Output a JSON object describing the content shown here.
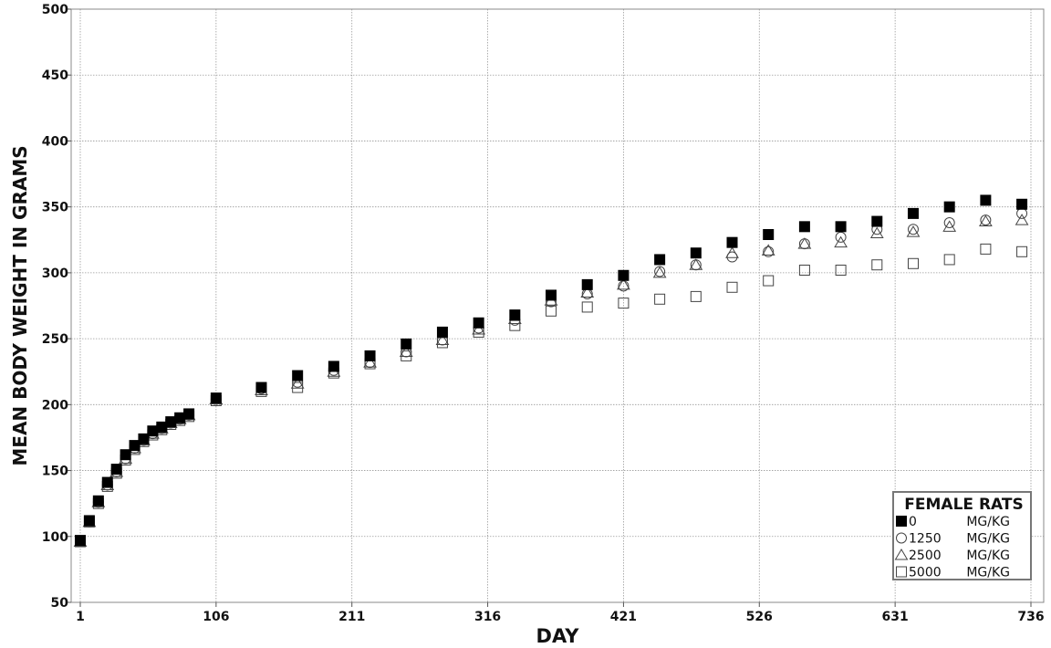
{
  "chart_data": {
    "type": "scatter",
    "xlabel": "DAY",
    "ylabel": "MEAN BODY WEIGHT IN GRAMS",
    "xlim": [
      1,
      736
    ],
    "ylim": [
      50,
      500
    ],
    "x_ticks": [
      1,
      106,
      211,
      316,
      421,
      526,
      631,
      736
    ],
    "y_ticks": [
      50,
      100,
      150,
      200,
      250,
      300,
      350,
      400,
      450,
      500
    ],
    "grid": true,
    "legend": {
      "title": "FEMALE RATS",
      "placement": "bottom-right",
      "entries": [
        {
          "dose": "0",
          "unit": "MG/KG"
        },
        {
          "dose": "1250",
          "unit": "MG/KG"
        },
        {
          "dose": "2500",
          "unit": "MG/KG"
        },
        {
          "dose": "5000",
          "unit": "MG/KG"
        }
      ]
    },
    "x": [
      1,
      8,
      15,
      22,
      29,
      36,
      43,
      50,
      57,
      64,
      71,
      78,
      85,
      106,
      141,
      169,
      197,
      225,
      253,
      281,
      309,
      337,
      365,
      393,
      421,
      449,
      477,
      505,
      533,
      561,
      589,
      617,
      645,
      673,
      701,
      729
    ],
    "series": [
      {
        "name": "0 MG/KG",
        "marker": "square-filled",
        "values": [
          97,
          112,
          127,
          141,
          151,
          162,
          169,
          174,
          180,
          183,
          187,
          190,
          193,
          205,
          213,
          222,
          229,
          237,
          246,
          255,
          262,
          268,
          283,
          291,
          298,
          310,
          315,
          323,
          329,
          335,
          335,
          339,
          345,
          350,
          355,
          352
        ]
      },
      {
        "name": "1250 MG/KG",
        "marker": "circle-open",
        "values": [
          96,
          111,
          126,
          139,
          149,
          159,
          167,
          173,
          178,
          182,
          186,
          189,
          192,
          204,
          212,
          217,
          226,
          232,
          240,
          249,
          258,
          264,
          278,
          284,
          290,
          301,
          306,
          312,
          316,
          322,
          327,
          333,
          333,
          338,
          340,
          345
        ]
      },
      {
        "name": "2500 MG/KG",
        "marker": "triangle-open",
        "values": [
          96,
          111,
          126,
          139,
          149,
          159,
          167,
          173,
          178,
          182,
          186,
          189,
          192,
          204,
          211,
          216,
          225,
          232,
          240,
          249,
          257,
          265,
          279,
          285,
          291,
          300,
          306,
          315,
          317,
          322,
          323,
          330,
          331,
          335,
          339,
          340
        ]
      },
      {
        "name": "5000 MG/KG",
        "marker": "square-open",
        "values": [
          96,
          111,
          125,
          138,
          148,
          158,
          166,
          172,
          177,
          181,
          185,
          188,
          191,
          203,
          210,
          213,
          224,
          231,
          237,
          247,
          255,
          260,
          271,
          274,
          277,
          280,
          282,
          289,
          294,
          302,
          302,
          306,
          307,
          310,
          318,
          316
        ]
      }
    ]
  }
}
